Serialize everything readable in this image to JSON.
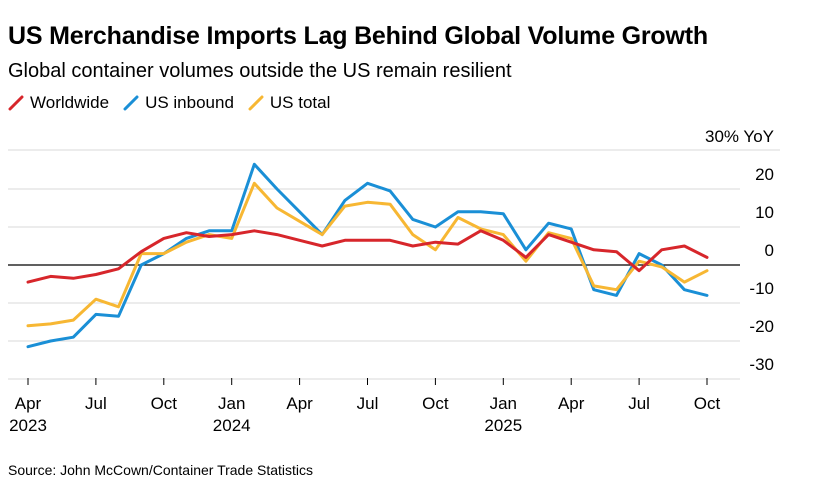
{
  "header": {
    "title": "US Merchandise Imports Lag Behind Global Volume Growth",
    "subtitle": "Global container volumes outside the US remain resilient"
  },
  "legend": [
    {
      "label": "Worldwide",
      "color": "#d7262b"
    },
    {
      "label": "US inbound",
      "color": "#1a8fd6"
    },
    {
      "label": "US total",
      "color": "#f7b733"
    }
  ],
  "footer": {
    "source": "Source: John McCown/Container Trade Statistics"
  },
  "chart_data": {
    "type": "line",
    "title": "US Merchandise Imports Lag Behind Global Volume Growth",
    "ylabel": "30% YoY",
    "ylim": [
      -30,
      30
    ],
    "y_ticks": [
      20,
      10,
      0,
      -10,
      -20,
      -30
    ],
    "y_tick_labels": [
      "20",
      "10",
      "0",
      "-10",
      "-20",
      "-30"
    ],
    "y_unit_label": "30% YoY",
    "zero_line": 0,
    "x": [
      "Apr 2023",
      "May 2023",
      "Jun 2023",
      "Jul 2023",
      "Aug 2023",
      "Sep 2023",
      "Oct 2023",
      "Nov 2023",
      "Dec 2023",
      "Jan 2024",
      "Feb 2024",
      "Mar 2024",
      "Apr 2024",
      "May 2024",
      "Jun 2024",
      "Jul 2024",
      "Aug 2024",
      "Sep 2024",
      "Oct 2024",
      "Nov 2024",
      "Dec 2024",
      "Jan 2025",
      "Feb 2025",
      "Mar 2025",
      "Apr 2025",
      "May 2025",
      "Jun 2025",
      "Jul 2025",
      "Aug 2025",
      "Sep 2025",
      "Oct 2025"
    ],
    "x_ticks": [
      {
        "index": 0,
        "line1": "Apr",
        "line2": "2023"
      },
      {
        "index": 3,
        "line1": "Jul",
        "line2": ""
      },
      {
        "index": 6,
        "line1": "Oct",
        "line2": ""
      },
      {
        "index": 9,
        "line1": "Jan",
        "line2": "2024"
      },
      {
        "index": 12,
        "line1": "Apr",
        "line2": ""
      },
      {
        "index": 15,
        "line1": "Jul",
        "line2": ""
      },
      {
        "index": 18,
        "line1": "Oct",
        "line2": ""
      },
      {
        "index": 21,
        "line1": "Jan",
        "line2": "2025"
      },
      {
        "index": 24,
        "line1": "Apr",
        "line2": ""
      },
      {
        "index": 27,
        "line1": "Jul",
        "line2": ""
      },
      {
        "index": 30,
        "line1": "Oct",
        "line2": ""
      }
    ],
    "series": [
      {
        "name": "US inbound",
        "color": "#1a8fd6",
        "values": [
          -21.5,
          -20,
          -19,
          -13,
          -13.5,
          0,
          3,
          7,
          9,
          9,
          26.5,
          20,
          14,
          8,
          17,
          21.5,
          19.5,
          12,
          10,
          14,
          14,
          13.5,
          4,
          11,
          9.5,
          -6.5,
          -8,
          3,
          0,
          -6.5,
          -8
        ]
      },
      {
        "name": "US total",
        "color": "#f7b733",
        "values": [
          -16,
          -15.5,
          -14.5,
          -9,
          -11,
          3,
          3,
          6,
          8,
          7,
          21.5,
          15,
          11.5,
          8,
          15.5,
          16.5,
          16,
          8,
          4,
          12.5,
          9.5,
          8,
          1,
          8.5,
          7,
          -5.5,
          -6.5,
          1,
          -0.5,
          -4.5,
          -1.5
        ]
      },
      {
        "name": "Worldwide",
        "color": "#d7262b",
        "values": [
          -4.5,
          -3,
          -3.5,
          -2.5,
          -1,
          3.5,
          7,
          8.5,
          7.5,
          8,
          9,
          8,
          6.5,
          5,
          6.5,
          6.5,
          6.5,
          5,
          6,
          5.5,
          9,
          6.5,
          2,
          8,
          6,
          4,
          3.5,
          -1.5,
          4,
          5,
          2
        ]
      }
    ]
  }
}
